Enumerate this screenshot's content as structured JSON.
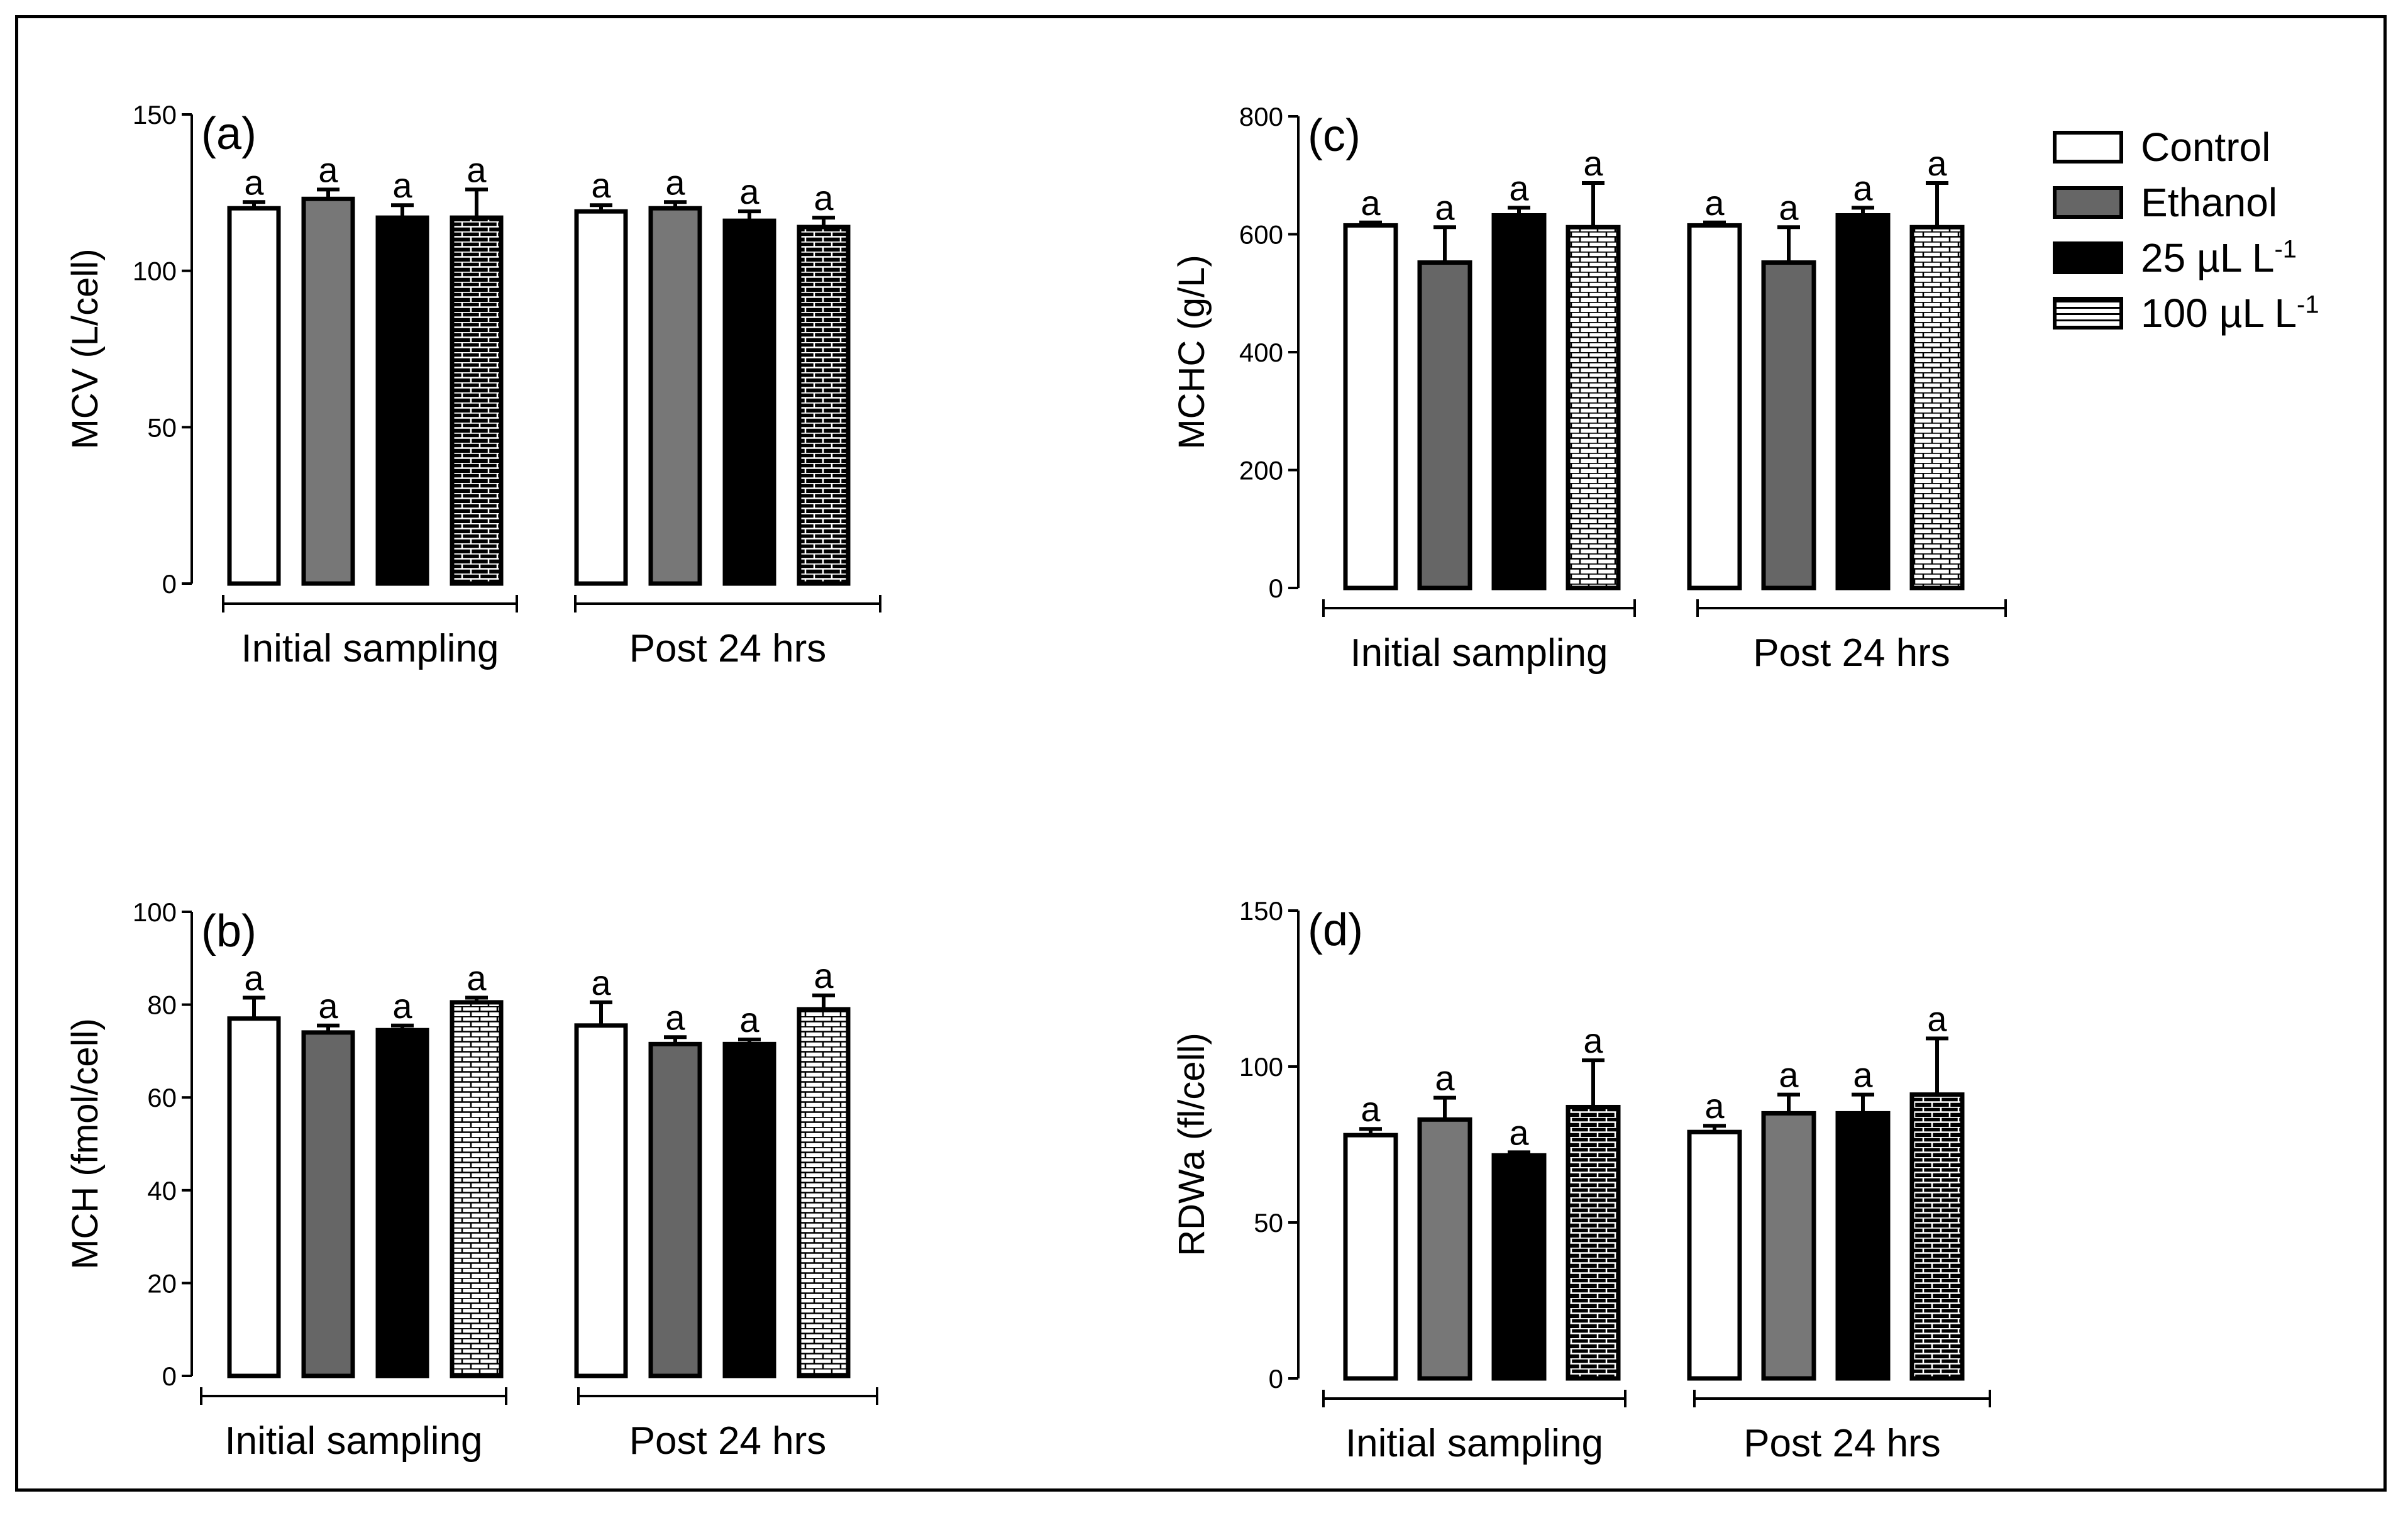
{
  "chart_data": [
    {
      "type": "bar",
      "panel": "(a)",
      "ylabel": "MCV (L/cell)",
      "ylim": [
        0,
        150
      ],
      "yticks": [
        0,
        50,
        100,
        150
      ],
      "groups": [
        "Initial sampling",
        "Post 24 hrs"
      ],
      "series": [
        {
          "name": "Control",
          "values": [
            120,
            119
          ],
          "errors": [
            2,
            2
          ],
          "letters": [
            "a",
            "a"
          ]
        },
        {
          "name": "Ethanol",
          "values": [
            123,
            120
          ],
          "errors": [
            3,
            2
          ],
          "letters": [
            "a",
            "a"
          ]
        },
        {
          "name": "25 µL L-1",
          "values": [
            117,
            116
          ],
          "errors": [
            4,
            3
          ],
          "letters": [
            "a",
            "a"
          ]
        },
        {
          "name": "100 µL L-1",
          "values": [
            117,
            114
          ],
          "errors": [
            9,
            3
          ],
          "letters": [
            "a",
            "a"
          ]
        }
      ]
    },
    {
      "type": "bar",
      "panel": "(b)",
      "ylabel": "MCH (fmol/cell)",
      "ylim": [
        0,
        100
      ],
      "yticks": [
        0,
        20,
        40,
        60,
        80,
        100
      ],
      "groups": [
        "Initial sampling",
        "Post 24 hrs"
      ],
      "series": [
        {
          "name": "Control",
          "values": [
            77,
            75.5
          ],
          "errors": [
            4.5,
            5
          ],
          "letters": [
            "a",
            "a"
          ]
        },
        {
          "name": "Ethanol",
          "values": [
            74,
            71.5
          ],
          "errors": [
            1.5,
            1.5
          ],
          "letters": [
            "a",
            "a"
          ]
        },
        {
          "name": "25 µL L-1",
          "values": [
            74.5,
            71.5
          ],
          "errors": [
            1,
            1
          ],
          "letters": [
            "a",
            "a"
          ]
        },
        {
          "name": "100 µL L-1",
          "values": [
            80.5,
            79
          ],
          "errors": [
            1,
            3
          ],
          "letters": [
            "a",
            "a"
          ]
        }
      ]
    },
    {
      "type": "bar",
      "panel": "(c)",
      "ylabel": "MCHC (g/L)",
      "ylim": [
        0,
        800
      ],
      "yticks": [
        0,
        200,
        400,
        600,
        800
      ],
      "groups": [
        "Initial sampling",
        "Post 24 hrs"
      ],
      "series": [
        {
          "name": "Control",
          "values": [
            615,
            615
          ],
          "errors": [
            5,
            5
          ],
          "letters": [
            "a",
            "a"
          ]
        },
        {
          "name": "Ethanol",
          "values": [
            552,
            552
          ],
          "errors": [
            60,
            60
          ],
          "letters": [
            "a",
            "a"
          ]
        },
        {
          "name": "25 µL L-1",
          "values": [
            632,
            632
          ],
          "errors": [
            13,
            13
          ],
          "letters": [
            "a",
            "a"
          ]
        },
        {
          "name": "100 µL L-1",
          "values": [
            612,
            612
          ],
          "errors": [
            75,
            75
          ],
          "letters": [
            "a",
            "a"
          ]
        }
      ]
    },
    {
      "type": "bar",
      "panel": "(d)",
      "ylabel": "RDWa (fl/cell)",
      "ylim": [
        0,
        150
      ],
      "yticks": [
        0,
        50,
        100,
        150
      ],
      "groups": [
        "Initial sampling",
        "Post 24 hrs"
      ],
      "series": [
        {
          "name": "Control",
          "values": [
            78,
            79
          ],
          "errors": [
            2,
            2
          ],
          "letters": [
            "a",
            "a"
          ]
        },
        {
          "name": "Ethanol",
          "values": [
            83,
            85
          ],
          "errors": [
            7,
            6
          ],
          "letters": [
            "a",
            "a"
          ]
        },
        {
          "name": "25 µL L-1",
          "values": [
            71.5,
            85
          ],
          "errors": [
            1,
            6
          ],
          "letters": [
            "a",
            "a"
          ]
        },
        {
          "name": "100 µL L-1",
          "values": [
            87,
            91
          ],
          "errors": [
            15,
            18
          ],
          "letters": [
            "a",
            "a"
          ]
        }
      ]
    }
  ],
  "legend": {
    "items": [
      {
        "label": "Control",
        "unit": ""
      },
      {
        "label": "Ethanol",
        "unit": ""
      },
      {
        "label": "25 µL L",
        "unit": "-1"
      },
      {
        "label": "100 µL L",
        "unit": "-1"
      }
    ]
  }
}
